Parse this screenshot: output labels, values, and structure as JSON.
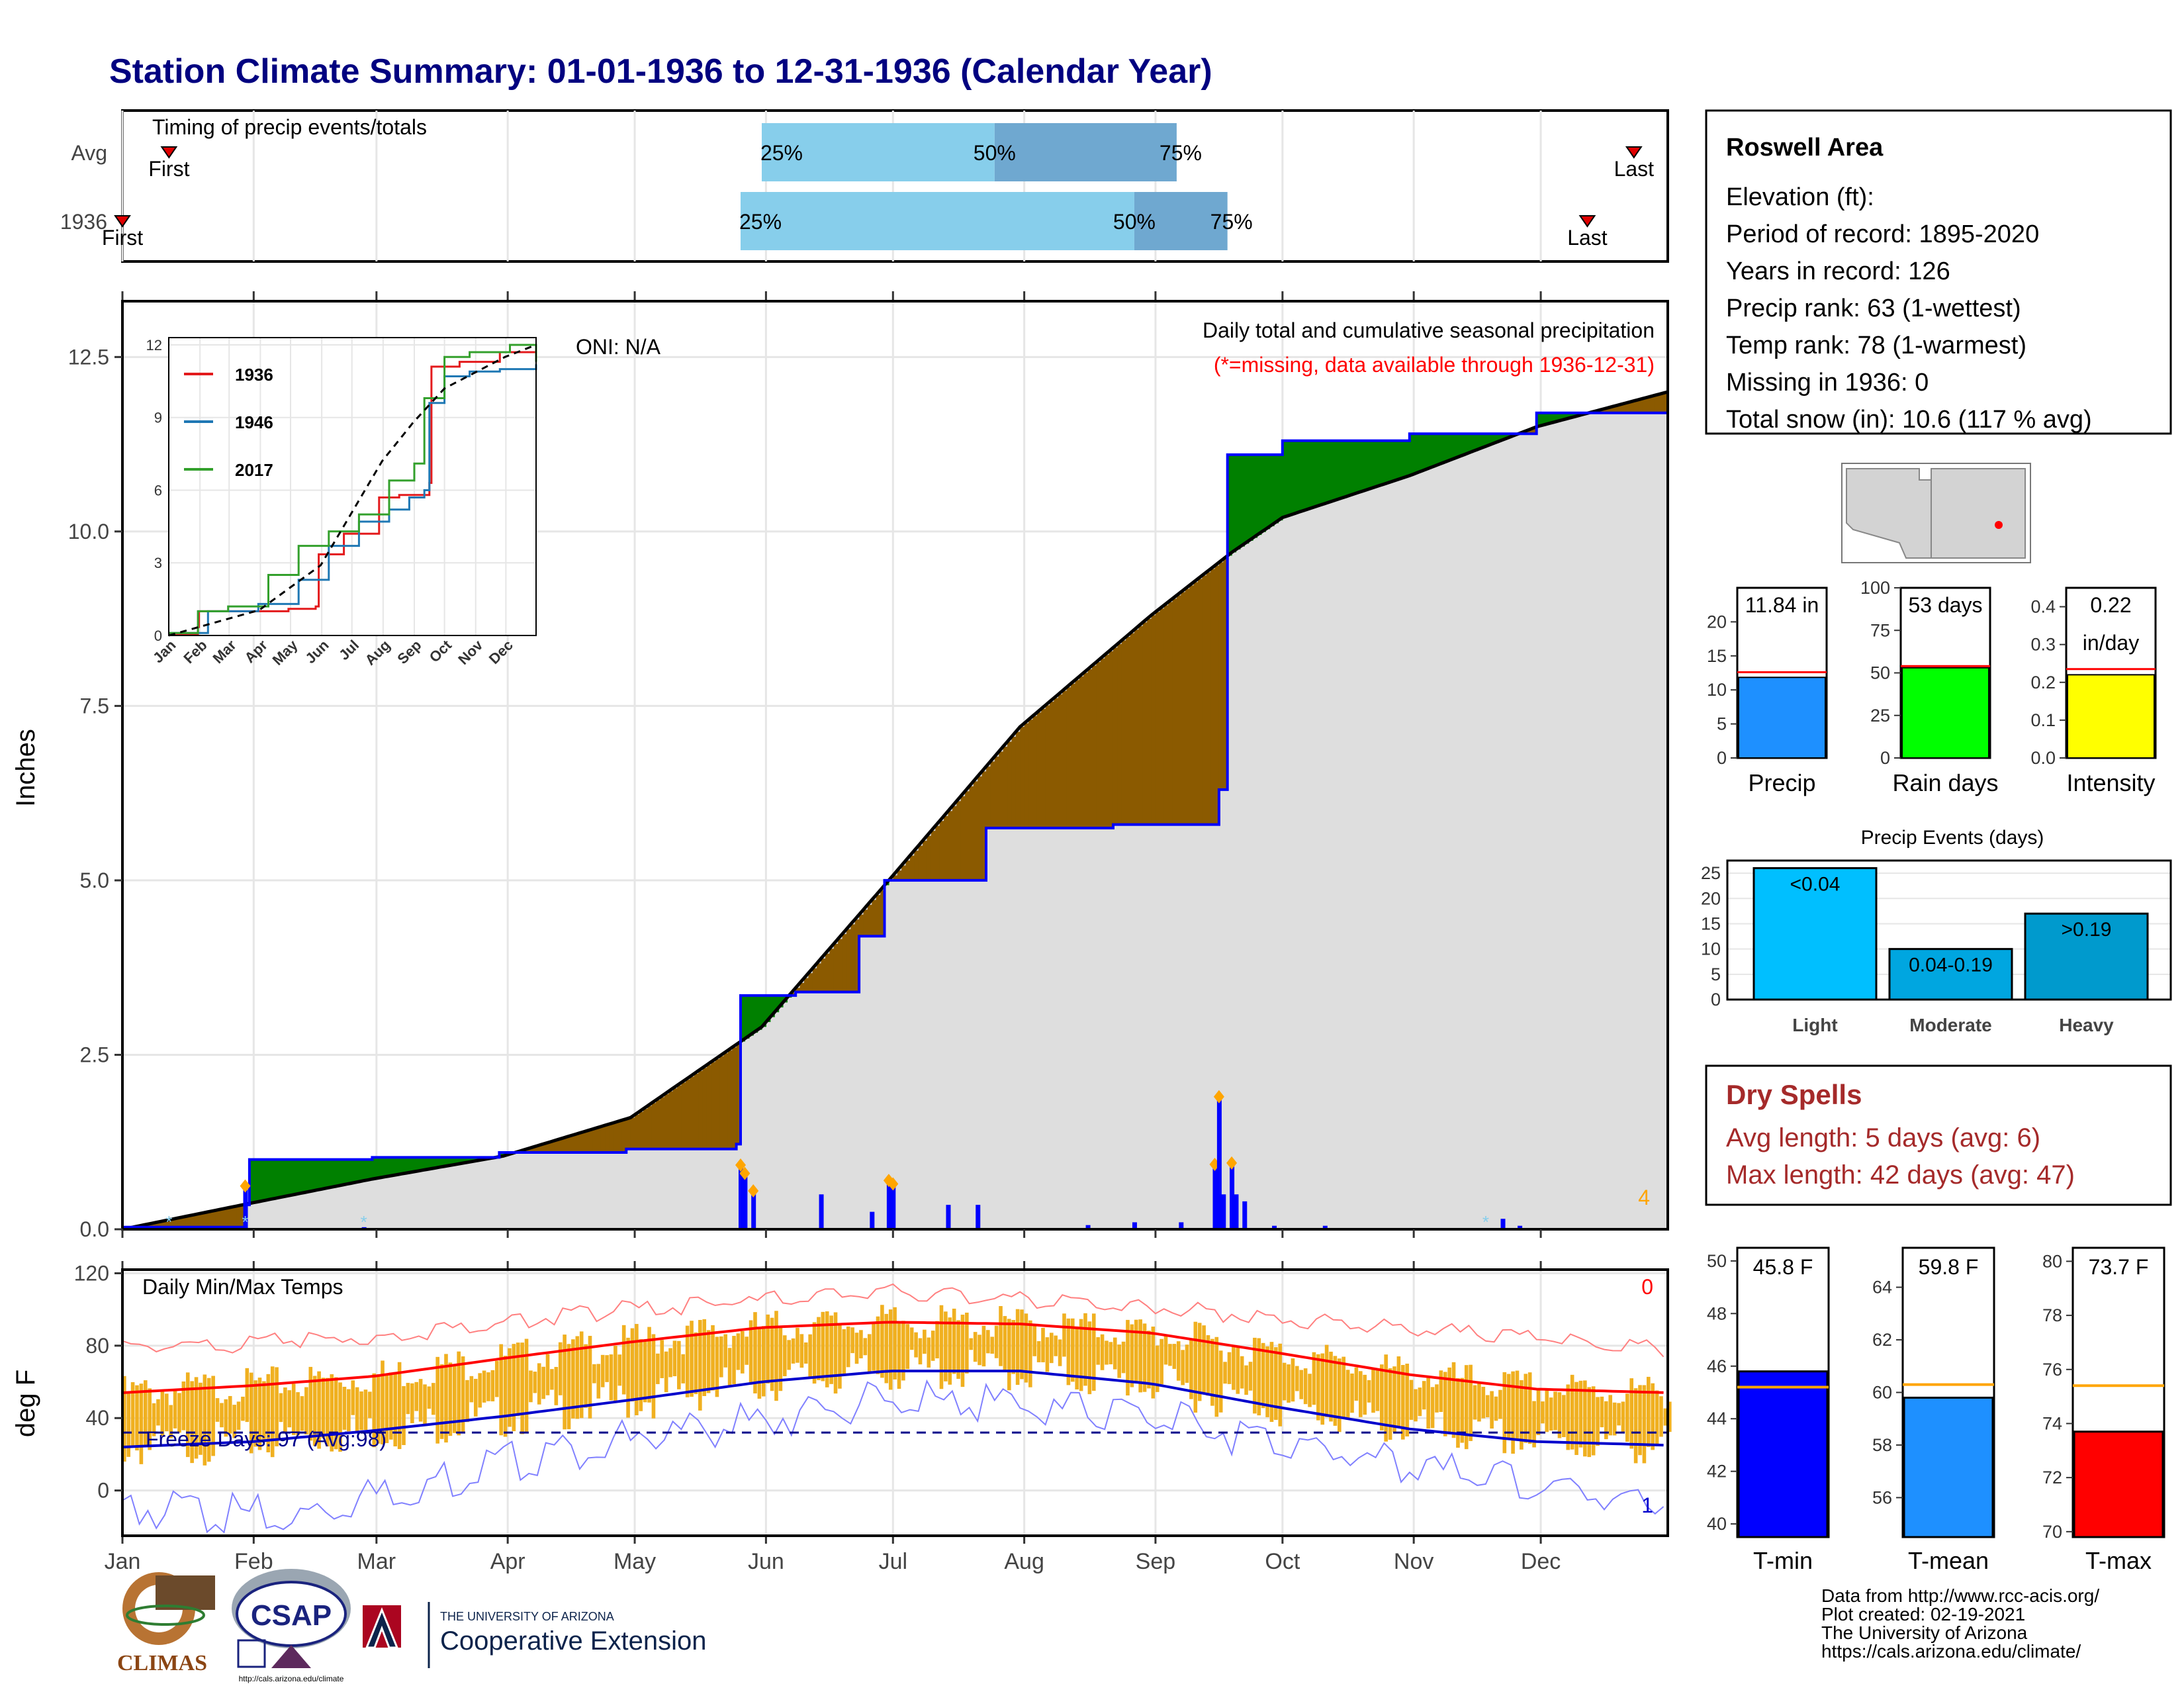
{
  "title": "Station Climate Summary: 01-01-1936 to 12-31-1936 (Calendar Year)",
  "colors": {
    "title": "#000080",
    "frame": "#000000",
    "grid": "#e6e6e6",
    "cum_area": "#dedede",
    "surplus": "#008000",
    "deficit": "#8b5a00",
    "avg_line": "#0000ff",
    "light_blue": "#87ceeb",
    "mid_blue": "#6fa8d0",
    "precip_bar": "#1e90ff",
    "rain_bar": "#00ff00",
    "intensity_bar": "#ffff00",
    "events_light": "#00bfff",
    "events_mod": "#00a6e0",
    "events_heavy": "#009acd",
    "dry_red": "#a52a2a",
    "tmin": "#0000ff",
    "tmean": "#1e90ff",
    "tmax": "#ff0000",
    "temp_bar": "#f0b020",
    "marker_orange": "#ffa500",
    "avg_orange": "#ffa500"
  },
  "timing": {
    "label": "Timing of precip events/totals",
    "rows": [
      {
        "name": "Avg",
        "first_label": "First",
        "last_label": "Last",
        "first_day": 12,
        "last_day": 358,
        "p25": 152,
        "p50": 207,
        "p75": 250,
        "p25_label": "25%",
        "p50_label": "50%",
        "p75_label": "75%"
      },
      {
        "name": "1936",
        "first_label": "First",
        "last_label": "Last",
        "first_day": 1,
        "last_day": 347,
        "p25": 147,
        "p50": 240,
        "p75": 262,
        "p25_label": "25%",
        "p50_label": "50%",
        "p75_label": "75%"
      }
    ]
  },
  "precip_panel": {
    "ylabel": "Inches",
    "oni": "ONI: N/A",
    "caption": "Daily total and cumulative seasonal precipitation",
    "missing_note": "(*=missing, data available through 1936-12-31)",
    "corner_count": "4",
    "y_ticks": [
      "0.0",
      "2.5",
      "5.0",
      "7.5",
      "10.0",
      "12.5"
    ]
  },
  "inset": {
    "y_ticks": [
      "0",
      "3",
      "6",
      "9",
      "12"
    ],
    "months": [
      "Jan",
      "Feb",
      "Mar",
      "Apr",
      "May",
      "Jun",
      "Jul",
      "Aug",
      "Sep",
      "Oct",
      "Nov",
      "Dec"
    ],
    "legend": [
      "1936",
      "1946",
      "2017"
    ]
  },
  "temp_panel": {
    "ylabel": "deg F",
    "title": "Daily Min/Max Temps",
    "freeze": "Freeze Days: 97 (Avg:98)",
    "count_high": "0",
    "count_low": "1",
    "y_ticks": [
      "0",
      "40",
      "80",
      "120"
    ]
  },
  "months": [
    "Jan",
    "Feb",
    "Mar",
    "Apr",
    "May",
    "Jun",
    "Jul",
    "Aug",
    "Sep",
    "Oct",
    "Nov",
    "Dec"
  ],
  "station": {
    "name": "Roswell Area",
    "lines": [
      "Elevation (ft):",
      "Period of record: 1895-2020",
      "Years in record: 126",
      "Precip rank: 63 (1-wettest)",
      "Temp rank: 78 (1-warmest)",
      "Missing in 1936: 0",
      "Total snow (in): 10.6 (117 % avg)"
    ]
  },
  "mini_bars": [
    {
      "label": "Precip",
      "value_label": "11.84 in",
      "value": 11.84,
      "avg": 12.6,
      "ymax": 25,
      "ticks": [
        "0",
        "5",
        "10",
        "15",
        "20"
      ],
      "tick_vals": [
        0,
        5,
        10,
        15,
        20
      ],
      "color": "#1e90ff"
    },
    {
      "label": "Rain days",
      "value_label": "53 days",
      "value": 53,
      "avg": 54,
      "ymax": 100,
      "ticks": [
        "0",
        "25",
        "50",
        "75",
        "100"
      ],
      "tick_vals": [
        0,
        25,
        50,
        75,
        100
      ],
      "color": "#00ff00"
    },
    {
      "label": "Intensity",
      "value_label": "0.22",
      "value_label2": "in/day",
      "value": 0.22,
      "avg": 0.235,
      "ymax": 0.45,
      "ticks": [
        "0.0",
        "0.1",
        "0.2",
        "0.3",
        "0.4"
      ],
      "tick_vals": [
        0,
        0.1,
        0.2,
        0.3,
        0.4
      ],
      "color": "#ffff00"
    }
  ],
  "events": {
    "title": "Precip Events (days)",
    "ticks": [
      "0",
      "5",
      "10",
      "15",
      "20",
      "25"
    ],
    "categories": [
      "Light",
      "Moderate",
      "Heavy"
    ],
    "bar_labels": [
      "<0.04",
      "0.04-0.19",
      ">0.19"
    ],
    "values": [
      26,
      10,
      17
    ]
  },
  "dry_spells": {
    "title": "Dry Spells",
    "avg": "Avg length: 5 days (avg: 6)",
    "max": "Max length: 42 days (avg: 47)"
  },
  "temp_bars": [
    {
      "label": "T-min",
      "value_label": "45.8 F",
      "value": 45.8,
      "avg": 45.2,
      "ymin": 39.5,
      "ymax": 50.5,
      "ticks": [
        "40",
        "42",
        "44",
        "46",
        "48",
        "50"
      ],
      "tick_vals": [
        40,
        42,
        44,
        46,
        48,
        50
      ],
      "color": "#0000ff"
    },
    {
      "label": "T-mean",
      "value_label": "59.8 F",
      "value": 59.8,
      "avg": 60.3,
      "ymin": 54.5,
      "ymax": 65.5,
      "ticks": [
        "56",
        "58",
        "60",
        "62",
        "64"
      ],
      "tick_vals": [
        56,
        58,
        60,
        62,
        64
      ],
      "color": "#1e90ff"
    },
    {
      "label": "T-max",
      "value_label": "73.7 F",
      "value": 73.7,
      "avg": 75.4,
      "ymin": 69.8,
      "ymax": 80.5,
      "ticks": [
        "70",
        "72",
        "74",
        "76",
        "78",
        "80"
      ],
      "tick_vals": [
        70,
        72,
        74,
        76,
        78,
        80
      ],
      "color": "#ff0000"
    }
  ],
  "footer": [
    "Data from http://www.rcc-acis.org/",
    "Plot created: 02-19-2021",
    "The University of Arizona",
    "https://cals.arizona.edu/climate/"
  ],
  "logos": {
    "climas": "CLIMAS",
    "csap": "CSAP",
    "csap_url": "http://cals.arizona.edu/climate",
    "ua_line1": "THE UNIVERSITY OF ARIZONA",
    "ua_line2": "Cooperative Extension"
  },
  "chart_data": [
    {
      "type": "area",
      "title": "Daily total and cumulative seasonal precipitation",
      "ylabel": "Inches",
      "ylim": [
        0,
        13.3
      ],
      "x_unit": "day of year",
      "cumulative_1936": {
        "x": [
          1,
          30,
          31,
          60,
          90,
          120,
          146,
          147,
          160,
          175,
          181,
          205,
          235,
          260,
          262,
          275,
          305,
          335,
          366
        ],
        "y": [
          0.03,
          0.35,
          1.0,
          1.03,
          1.1,
          1.15,
          1.22,
          3.35,
          3.4,
          4.2,
          5.0,
          5.75,
          5.8,
          6.3,
          11.1,
          11.3,
          11.4,
          11.7,
          11.84
        ]
      },
      "cumulative_avg": {
        "x": [
          1,
          31,
          60,
          91,
          121,
          152,
          182,
          213,
          244,
          263,
          275,
          305,
          335,
          366
        ],
        "y": [
          0.0,
          0.37,
          0.72,
          1.05,
          1.6,
          2.9,
          5.0,
          7.2,
          8.8,
          9.7,
          10.2,
          10.8,
          11.5,
          12.0
        ]
      },
      "daily_bars": {
        "x": [
          10,
          28,
          30,
          58,
          147,
          148,
          150,
          166,
          178,
          182,
          183,
          196,
          203,
          229,
          240,
          251,
          259,
          260,
          261,
          263,
          264,
          266,
          273,
          285,
          327,
          331
        ],
        "y": [
          0.04,
          0.04,
          0.62,
          0.03,
          0.92,
          0.8,
          0.55,
          0.5,
          0.25,
          0.7,
          0.65,
          0.35,
          0.35,
          0.06,
          0.1,
          0.1,
          0.93,
          1.9,
          0.5,
          0.95,
          0.5,
          0.4,
          0.05,
          0.05,
          0.15,
          0.05
        ]
      }
    },
    {
      "type": "line",
      "title": "",
      "series_names": [
        "1936",
        "1946",
        "2017"
      ],
      "ylim": [
        0,
        12.3
      ],
      "series": [
        {
          "name": "1936",
          "x": [
            1,
            30,
            31,
            120,
            147,
            150,
            175,
            210,
            230,
            260,
            262,
            290,
            330,
            366
          ],
          "y": [
            0.03,
            0.35,
            1.0,
            1.1,
            1.2,
            3.35,
            4.2,
            5.7,
            5.8,
            6.3,
            11.1,
            11.3,
            11.7,
            11.84
          ]
        },
        {
          "name": "1946",
          "x": [
            1,
            40,
            90,
            130,
            160,
            190,
            220,
            240,
            255,
            260,
            275,
            300,
            330,
            366
          ],
          "y": [
            0.1,
            1.0,
            1.3,
            2.3,
            3.7,
            4.7,
            5.2,
            5.7,
            6.0,
            9.6,
            10.7,
            10.9,
            11.0,
            11.2
          ]
        },
        {
          "name": "2017",
          "x": [
            1,
            30,
            60,
            100,
            130,
            160,
            190,
            220,
            245,
            255,
            275,
            300,
            340,
            366
          ],
          "y": [
            0.1,
            1.0,
            1.2,
            2.5,
            3.7,
            4.3,
            5.0,
            6.4,
            7.1,
            9.8,
            11.5,
            11.7,
            12.0,
            11.3
          ]
        },
        {
          "name": "avg",
          "x": [
            1,
            91,
            152,
            213,
            244,
            275,
            335,
            366
          ],
          "y": [
            0.0,
            1.05,
            2.9,
            7.2,
            8.8,
            10.2,
            11.5,
            12.0
          ]
        }
      ]
    },
    {
      "type": "line",
      "title": "Daily Min/Max Temps",
      "ylabel": "deg F",
      "ylim": [
        -25,
        120
      ],
      "avg_max": {
        "x": [
          1,
          32,
          60,
          91,
          121,
          152,
          182,
          213,
          244,
          274,
          305,
          335,
          366
        ],
        "y": [
          54,
          58,
          63,
          73,
          82,
          90,
          93,
          92,
          87,
          76,
          64,
          56,
          54
        ]
      },
      "avg_min": {
        "x": [
          1,
          32,
          60,
          91,
          121,
          152,
          182,
          213,
          244,
          274,
          305,
          335,
          366
        ],
        "y": [
          24,
          27,
          33,
          41,
          50,
          60,
          66,
          66,
          59,
          46,
          34,
          27,
          25
        ]
      },
      "record_high": {
        "x": [
          1,
          60,
          120,
          182,
          240,
          300,
          366
        ],
        "y": [
          78,
          85,
          100,
          110,
          102,
          90,
          78
        ]
      },
      "record_low": {
        "x": [
          1,
          40,
          100,
          182,
          240,
          300,
          366
        ],
        "y": [
          -10,
          -15,
          20,
          50,
          42,
          15,
          -8
        ]
      },
      "freeze_threshold": 32
    },
    {
      "type": "bar",
      "categories": [
        "Light",
        "Moderate",
        "Heavy"
      ],
      "values": [
        26,
        10,
        17
      ],
      "title": "Precip Events (days)"
    }
  ]
}
